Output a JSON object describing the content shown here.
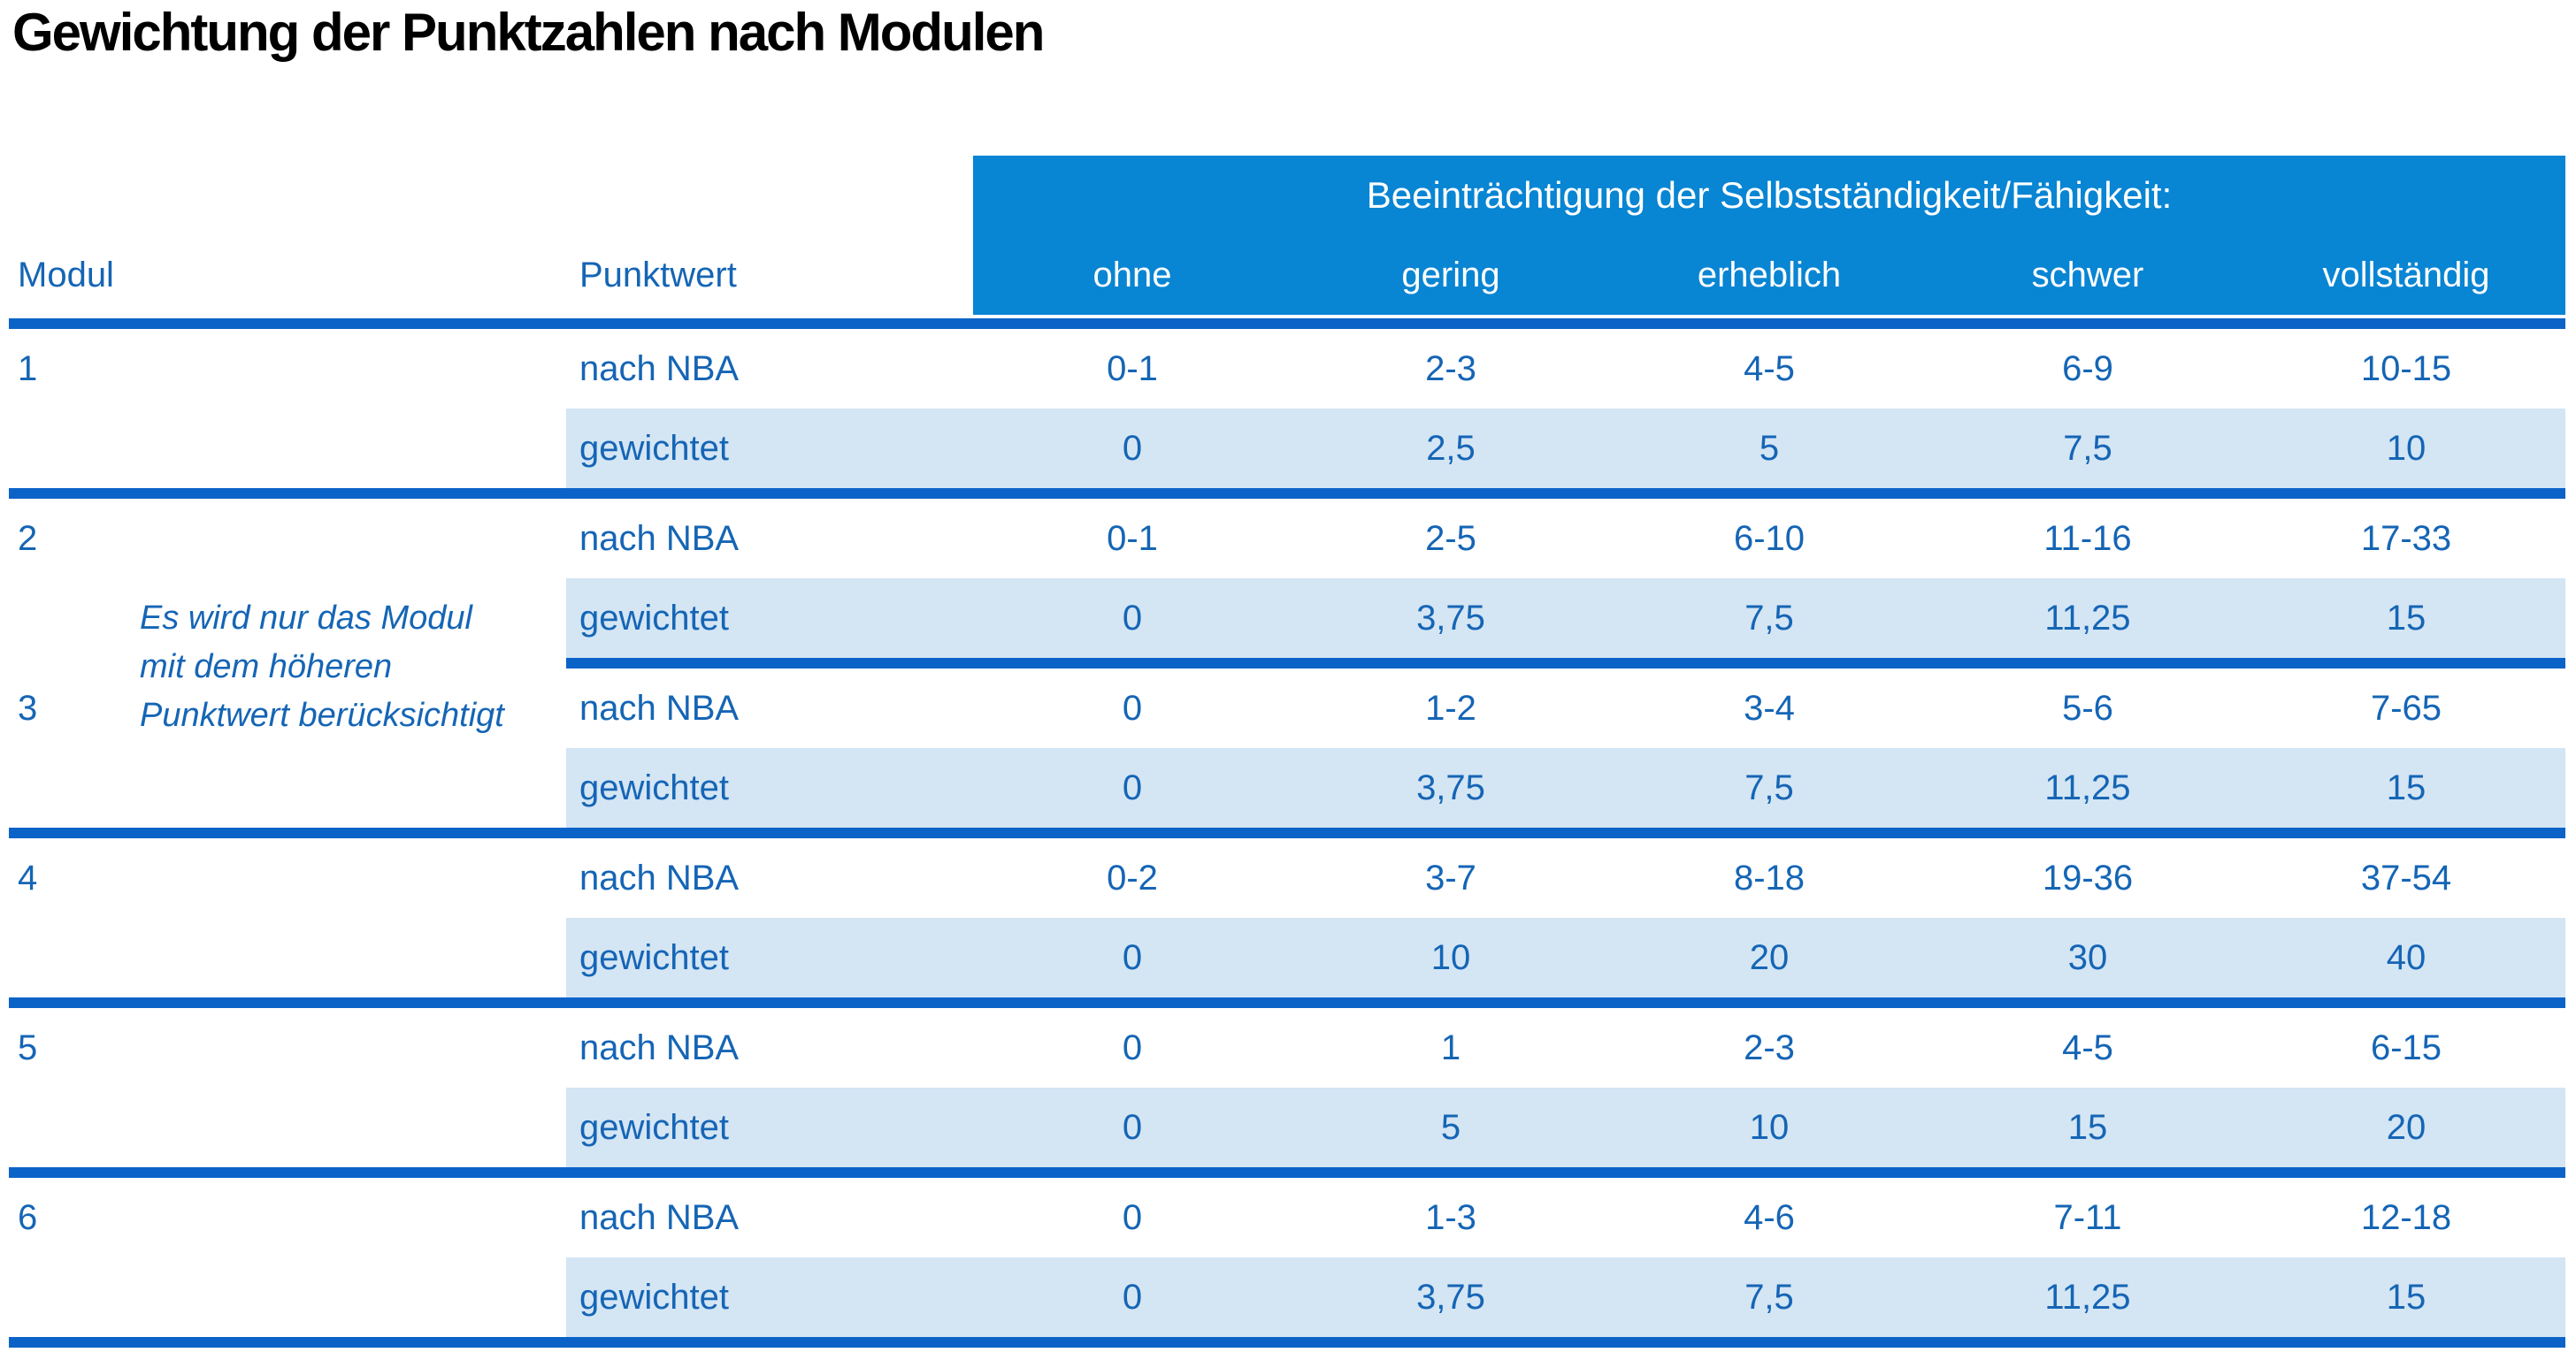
{
  "title": "Gewichtung der Punktzahlen nach Modulen",
  "colors": {
    "header_background": "#0885d3",
    "divider_blue": "#0b63c8",
    "row_highlight": "#d4e5f4",
    "text_blue": "#1565b5",
    "header_text": "#ffffff",
    "title_text": "#000000"
  },
  "table": {
    "header": {
      "col_modul": "Modul",
      "col_punktwert": "Punktwert",
      "impairment_title": "Beeinträchtigung der Selbstständigkeit/Fähigkeit:",
      "severity_cols": [
        "ohne",
        "gering",
        "erheblich",
        "schwer",
        "vollständig"
      ]
    },
    "row_labels": {
      "nba": "nach NBA",
      "weighted": "gewichtet"
    },
    "note": {
      "line1": "Es wird nur das Modul",
      "line2": "mit dem höheren",
      "line3": "Punktwert berücksichtigt"
    },
    "modules": [
      {
        "id": "1",
        "nba": [
          "0-1",
          "2-3",
          "4-5",
          "6-9",
          "10-15"
        ],
        "weighted": [
          "0",
          "2,5",
          "5",
          "7,5",
          "10"
        ]
      },
      {
        "id": "2",
        "nba": [
          "0-1",
          "2-5",
          "6-10",
          "11-16",
          "17-33"
        ],
        "weighted": [
          "0",
          "3,75",
          "7,5",
          "11,25",
          "15"
        ]
      },
      {
        "id": "3",
        "nba": [
          "0",
          "1-2",
          "3-4",
          "5-6",
          "7-65"
        ],
        "weighted": [
          "0",
          "3,75",
          "7,5",
          "11,25",
          "15"
        ]
      },
      {
        "id": "4",
        "nba": [
          "0-2",
          "3-7",
          "8-18",
          "19-36",
          "37-54"
        ],
        "weighted": [
          "0",
          "10",
          "20",
          "30",
          "40"
        ]
      },
      {
        "id": "5",
        "nba": [
          "0",
          "1",
          "2-3",
          "4-5",
          "6-15"
        ],
        "weighted": [
          "0",
          "5",
          "10",
          "15",
          "20"
        ]
      },
      {
        "id": "6",
        "nba": [
          "0",
          "1-3",
          "4-6",
          "7-11",
          "12-18"
        ],
        "weighted": [
          "0",
          "3,75",
          "7,5",
          "11,25",
          "15"
        ]
      }
    ]
  }
}
